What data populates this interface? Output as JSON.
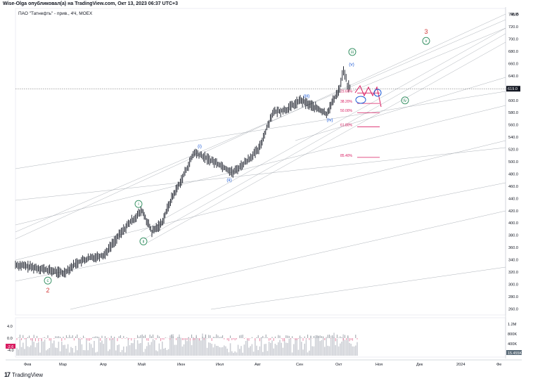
{
  "header": {
    "published_by": "Wise-Olga опубликовал(а) на TradingView.com, Окт 13, 2023 06:37 UTC+3",
    "symbol_line": "ПАО \"Татнефть\" - прив., 4Ч, MOEX"
  },
  "footer": {
    "brand": "TradingView"
  },
  "colors": {
    "bar": "#131722",
    "wave_label": "#1e5bd6",
    "circle_label": "#2a8a5a",
    "major_label": "#d23a3a",
    "fib": "#d81b60",
    "channel": "#9aa0a8",
    "projection": "#d81b60"
  },
  "chart_data": {
    "type": "candlestick",
    "currency": "RUB",
    "current_price": "619.0",
    "y_ticks": [
      "740.0",
      "720.0",
      "700.0",
      "680.0",
      "660.0",
      "640.0",
      "620.0",
      "600.0",
      "580.0",
      "560.0",
      "540.0",
      "520.0",
      "500.0",
      "480.0",
      "460.0",
      "440.0",
      "420.0",
      "400.0",
      "380.0",
      "360.0",
      "340.0",
      "320.0",
      "300.0",
      "280.0",
      "260.0"
    ],
    "y_range": [
      250,
      750
    ],
    "x_ticks": [
      "Фев",
      "Мар",
      "Апр",
      "Май",
      "Июн",
      "Июл",
      "Авг",
      "Сен",
      "Окт",
      "Ноя",
      "Дек",
      "2024",
      "Фе"
    ],
    "price_path": [
      [
        "Фев",
        332
      ],
      [
        "Фев",
        326
      ],
      [
        "Мар",
        318
      ],
      [
        "Мар",
        335
      ],
      [
        "Мар",
        343
      ],
      [
        "Апр",
        348
      ],
      [
        "Апр",
        375
      ],
      [
        "Апр",
        400
      ],
      [
        "Май",
        420
      ],
      [
        "Май",
        385
      ],
      [
        "Май",
        400
      ],
      [
        "Май",
        440
      ],
      [
        "Июн",
        470
      ],
      [
        "Июн",
        515
      ],
      [
        "Июн",
        505
      ],
      [
        "Июл",
        495
      ],
      [
        "Июл",
        482
      ],
      [
        "Июл",
        500
      ],
      [
        "Авг",
        520
      ],
      [
        "Авг",
        580
      ],
      [
        "Авг",
        585
      ],
      [
        "Сен",
        600
      ],
      [
        "Сен",
        590
      ],
      [
        "Сен",
        578
      ],
      [
        "Окт",
        620
      ],
      [
        "Окт",
        650
      ],
      [
        "Окт",
        625
      ],
      [
        "Окт",
        619
      ]
    ],
    "wave_labels": [
      {
        "label": "c",
        "x": "Фев",
        "price": 306,
        "style": "circle"
      },
      {
        "label": "2",
        "x": "Фев",
        "price": 290,
        "style": "major"
      },
      {
        "label": "i",
        "x": "Май",
        "price": 431,
        "style": "circle"
      },
      {
        "label": "ii",
        "x": "Май",
        "price": 370,
        "style": "circle"
      },
      {
        "label": "(i)",
        "x": "Июн",
        "price": 525,
        "style": "paren"
      },
      {
        "label": "(ii)",
        "x": "Июл",
        "price": 470,
        "style": "paren"
      },
      {
        "label": "(iii)",
        "x": "Сен",
        "price": 607,
        "style": "paren"
      },
      {
        "label": "(iv)",
        "x": "Сен",
        "price": 568,
        "style": "paren"
      },
      {
        "label": "(v)",
        "x": "Окт",
        "price": 659,
        "style": "paren"
      },
      {
        "label": "iii",
        "x": "Окт",
        "price": 679,
        "style": "circle"
      },
      {
        "label": "iv",
        "x": "Ноя",
        "price": 600,
        "style": "circle"
      },
      {
        "label": "v",
        "x": "Дек",
        "price": 697,
        "style": "circle"
      },
      {
        "label": "3",
        "x": "Дек",
        "price": 712,
        "style": "major"
      }
    ],
    "fib_levels": [
      {
        "label": "23.60%",
        "price": 612
      },
      {
        "label": "38.20%",
        "price": 595
      },
      {
        "label": "50.00%",
        "price": 580
      },
      {
        "label": "61.80%",
        "price": 557
      },
      {
        "label": "85.40%",
        "price": 507
      }
    ],
    "oscillator": {
      "ticks": [
        "4.0",
        "0.0",
        "-4.0"
      ],
      "marker_value": "-2.6"
    },
    "volume": {
      "ticks": [
        "1.2M",
        "800K",
        "400K"
      ],
      "marker_value": "15.455K"
    }
  }
}
